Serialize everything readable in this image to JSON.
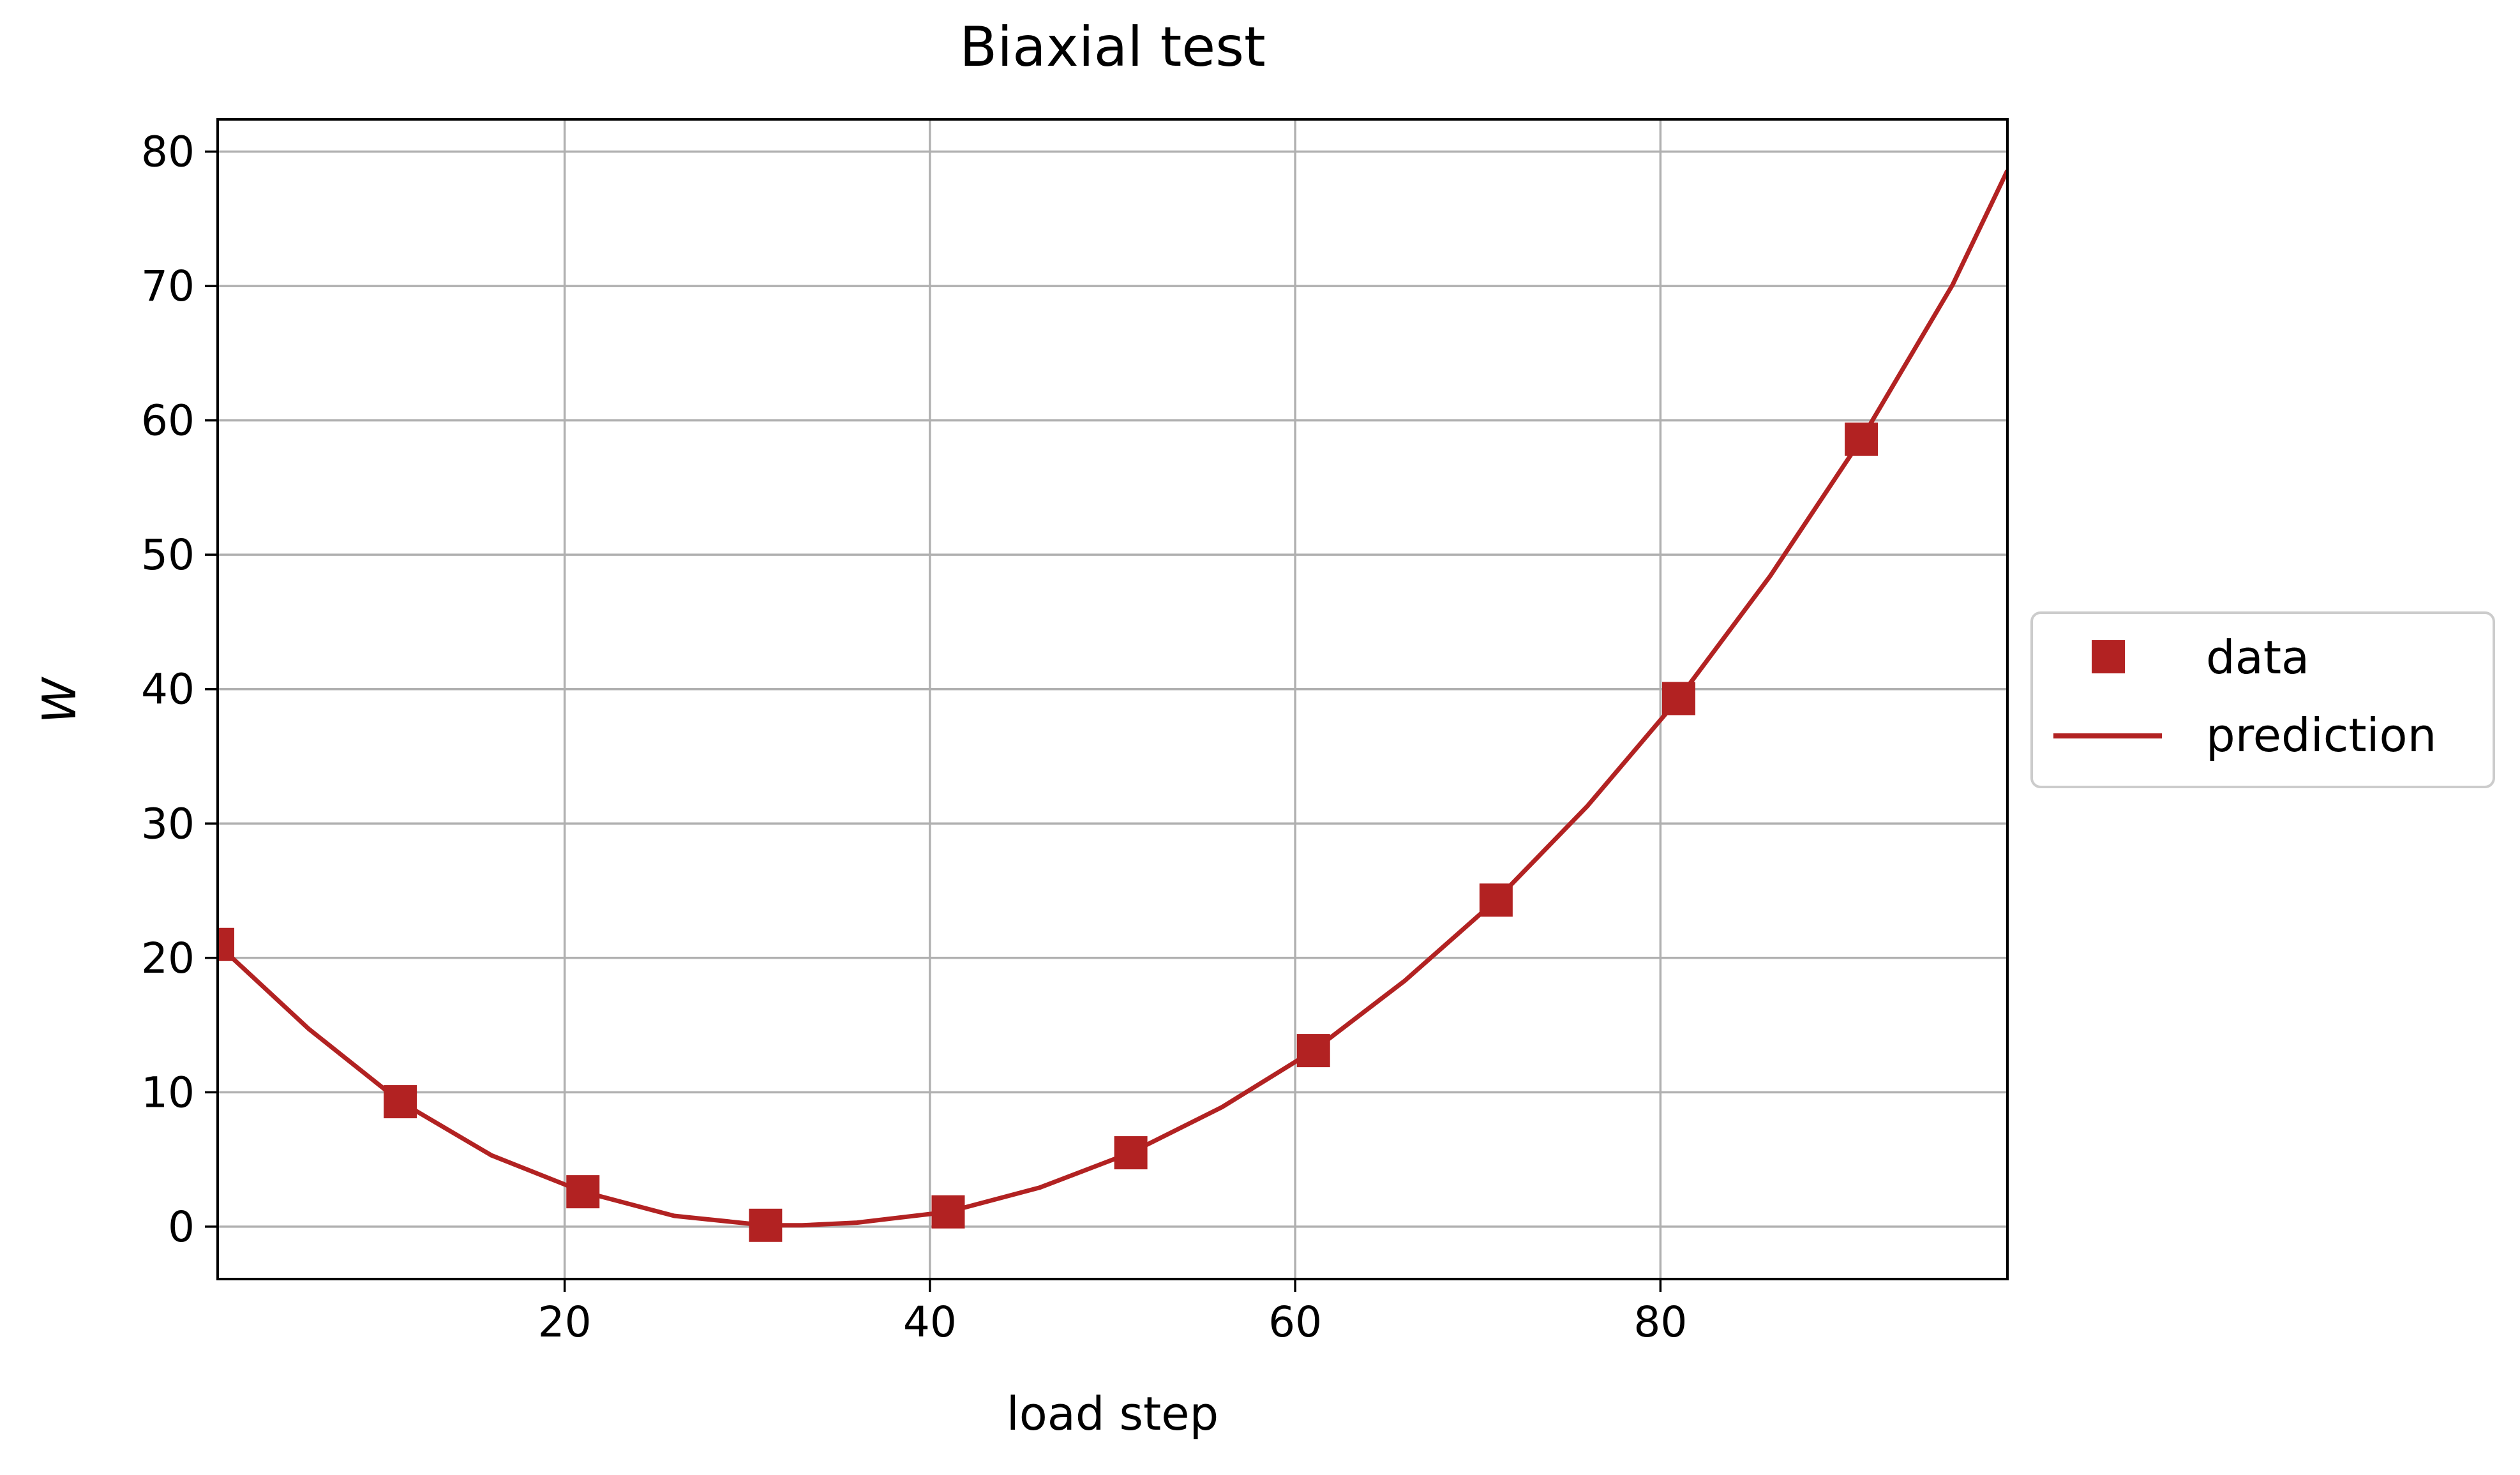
{
  "chart_data": {
    "type": "line",
    "title": "Biaxial test",
    "xlabel": "load step",
    "ylabel": "W",
    "xlim": [
      1,
      99
    ],
    "ylim": [
      -3.9,
      82.4
    ],
    "xticks": [
      20,
      40,
      60,
      80
    ],
    "yticks": [
      0,
      10,
      20,
      30,
      40,
      50,
      60,
      70,
      80
    ],
    "grid": true,
    "legend_position": "center-right-outside",
    "colors": {
      "series": "#b22222",
      "grid": "#b0b0b0",
      "axes": "#000000",
      "legend_border": "#cccccc"
    },
    "series": [
      {
        "name": "data",
        "kind": "markers",
        "marker": "square",
        "x": [
          1,
          11,
          21,
          31,
          41,
          51,
          61,
          71,
          81,
          91
        ],
        "y": [
          21.0,
          9.3,
          2.6,
          0.1,
          1.1,
          5.5,
          13.1,
          24.3,
          39.3,
          58.6
        ]
      },
      {
        "name": "prediction",
        "kind": "line",
        "x": [
          1,
          6,
          11,
          16,
          21,
          26,
          31,
          33,
          36,
          41,
          46,
          51,
          56,
          61,
          66,
          71,
          76,
          81,
          86,
          91,
          96,
          99
        ],
        "y": [
          21.0,
          14.7,
          9.3,
          5.3,
          2.6,
          0.8,
          0.1,
          0.1,
          0.3,
          1.1,
          2.9,
          5.5,
          8.9,
          13.1,
          18.3,
          24.3,
          31.3,
          39.3,
          48.4,
          58.6,
          70.1,
          78.6
        ]
      }
    ]
  }
}
